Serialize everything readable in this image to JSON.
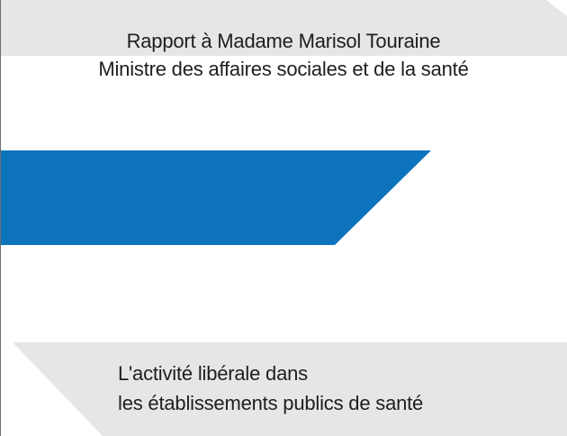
{
  "document": {
    "addressee_line1": "Rapport à Madame Marisol Touraine",
    "addressee_line2": "Ministre des affaires sociales et de la santé",
    "title_line1": "L'activité libérale dans",
    "title_line2": "les établissements publics de santé"
  },
  "colors": {
    "accent_band": "#0d73bd",
    "grey_band": "#e6e6e6",
    "text": "#1e1e1e"
  }
}
